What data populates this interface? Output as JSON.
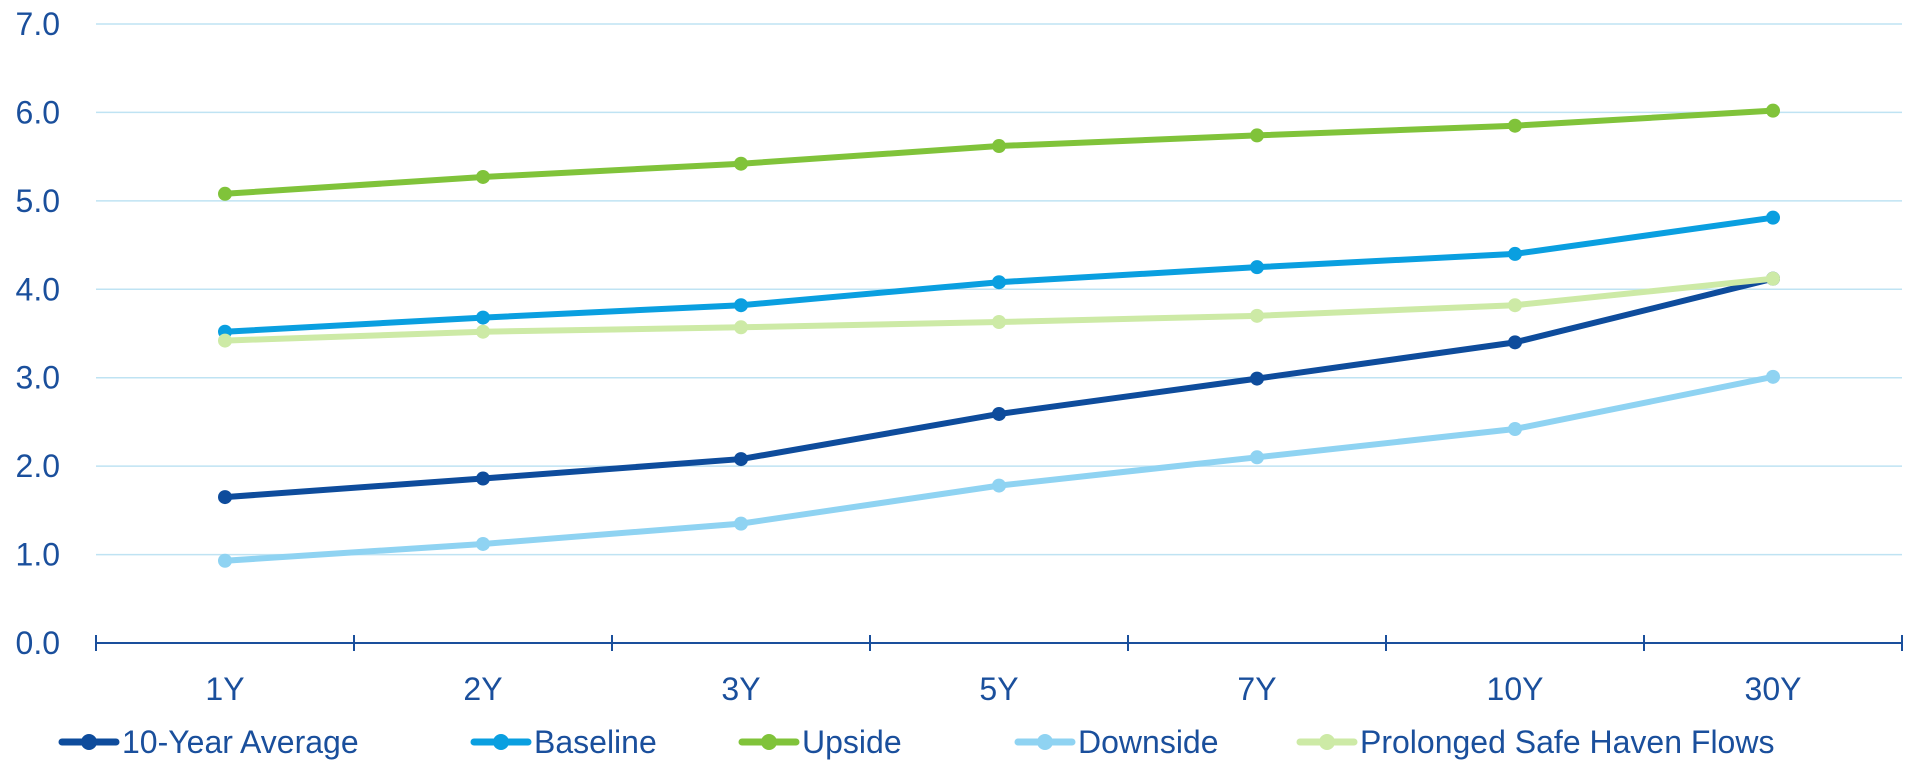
{
  "chart_data": {
    "type": "line",
    "categories": [
      "1Y",
      "2Y",
      "3Y",
      "5Y",
      "7Y",
      "10Y",
      "30Y"
    ],
    "ylim": [
      0,
      7
    ],
    "yticks": [
      "0.0",
      "1.0",
      "2.0",
      "3.0",
      "4.0",
      "5.0",
      "6.0",
      "7.0"
    ],
    "grid": true,
    "legend_position": "bottom",
    "series": [
      {
        "name": "10-Year Average",
        "color": "#0e4c9c",
        "values": [
          1.65,
          1.86,
          2.08,
          2.59,
          2.99,
          3.4,
          4.12
        ]
      },
      {
        "name": "Baseline",
        "color": "#0a9fe0",
        "values": [
          3.52,
          3.68,
          3.82,
          4.08,
          4.25,
          4.4,
          4.81
        ]
      },
      {
        "name": "Upside",
        "color": "#80c33a",
        "values": [
          5.08,
          5.27,
          5.42,
          5.62,
          5.74,
          5.85,
          6.02
        ]
      },
      {
        "name": "Downside",
        "color": "#8fd3f2",
        "values": [
          0.93,
          1.12,
          1.35,
          1.78,
          2.1,
          2.42,
          3.01
        ]
      },
      {
        "name": "Prolonged Safe Haven Flows",
        "color": "#cdeaa6",
        "values": [
          3.42,
          3.52,
          3.57,
          3.63,
          3.7,
          3.82,
          4.12
        ]
      }
    ]
  }
}
